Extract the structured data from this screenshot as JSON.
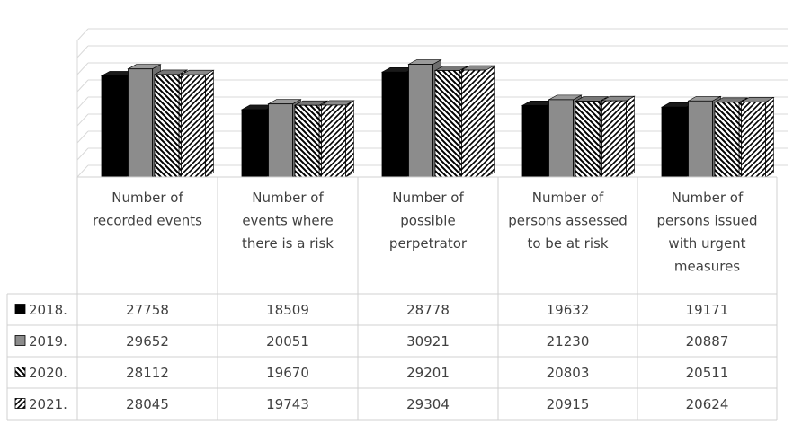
{
  "chart_data": {
    "type": "bar",
    "subtype": "3d-clustered-column-with-data-table",
    "categories": [
      [
        "Number of",
        "recorded events"
      ],
      [
        "Number of",
        "events where",
        "there is a risk"
      ],
      [
        "Number of",
        "possible",
        "perpetrator"
      ],
      [
        "Number of",
        "persons assessed",
        "to be at risk"
      ],
      [
        "Number of",
        "persons issued",
        "with urgent",
        "measures"
      ]
    ],
    "series": [
      {
        "name": "2018.",
        "values": [
          27758,
          18509,
          28778,
          19632,
          19171
        ],
        "pattern": "solid-black"
      },
      {
        "name": "2019.",
        "values": [
          29652,
          20051,
          30921,
          21230,
          20887
        ],
        "pattern": "solid-gray"
      },
      {
        "name": "2020.",
        "values": [
          28112,
          19670,
          29201,
          20803,
          20511
        ],
        "pattern": "hatch-backslash"
      },
      {
        "name": "2021.",
        "values": [
          28045,
          19743,
          29304,
          20915,
          20624
        ],
        "pattern": "hatch-slash"
      }
    ],
    "ylim": [
      0,
      35000
    ],
    "grid": true,
    "legend": "data-table-left",
    "colors": {
      "2018.": "#000000",
      "2019.": "#8c8c8c",
      "2020.": "#ffffff",
      "2021.": "#ffffff",
      "grid": "#d9d9d9",
      "hatch": "#000000"
    }
  }
}
